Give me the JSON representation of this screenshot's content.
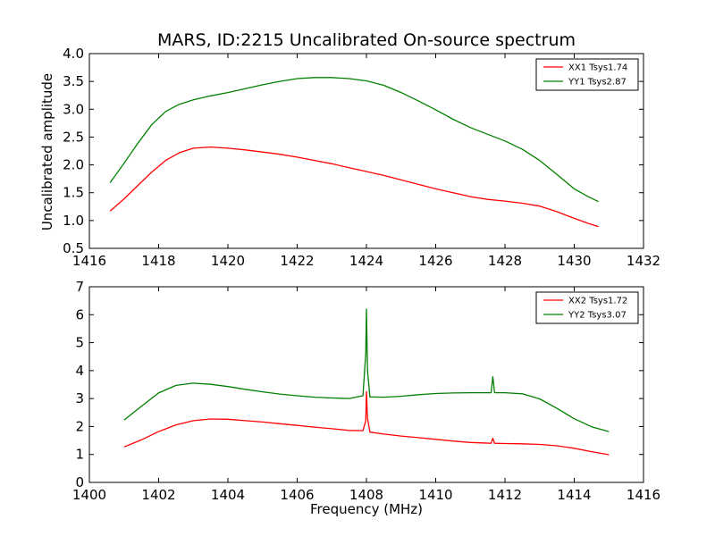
{
  "chart_data": [
    {
      "type": "line",
      "title": "MARS, ID:2215 Uncalibrated On-source spectrum",
      "xlabel": "",
      "ylabel": "Uncalibrated amplitude",
      "xlim": [
        1416,
        1432
      ],
      "ylim": [
        0.5,
        4.0
      ],
      "xticks": [
        "1416",
        "1418",
        "1420",
        "1422",
        "1424",
        "1426",
        "1428",
        "1430",
        "1432"
      ],
      "yticks": [
        "0.5",
        "1.0",
        "1.5",
        "2.0",
        "2.5",
        "3.0",
        "3.5",
        "4.0"
      ],
      "grid": false,
      "legend": "top-right",
      "series": [
        {
          "name": "XX1 Tsys1.74",
          "color": "#ff0000",
          "x": [
            1416.6,
            1417.0,
            1417.4,
            1417.8,
            1418.2,
            1418.6,
            1419.0,
            1419.5,
            1420.0,
            1420.5,
            1421.0,
            1421.5,
            1422.0,
            1422.5,
            1423.0,
            1423.5,
            1424.0,
            1424.5,
            1425.0,
            1425.5,
            1426.0,
            1426.5,
            1427.0,
            1427.5,
            1428.0,
            1428.5,
            1429.0,
            1429.5,
            1430.0,
            1430.4,
            1430.7
          ],
          "y": [
            1.17,
            1.39,
            1.63,
            1.87,
            2.08,
            2.22,
            2.3,
            2.32,
            2.3,
            2.27,
            2.23,
            2.19,
            2.14,
            2.08,
            2.02,
            1.95,
            1.88,
            1.81,
            1.73,
            1.65,
            1.57,
            1.5,
            1.43,
            1.38,
            1.35,
            1.31,
            1.26,
            1.16,
            1.04,
            0.95,
            0.89
          ]
        },
        {
          "name": "YY1 Tsys2.87",
          "color": "#008000",
          "x": [
            1416.6,
            1417.0,
            1417.4,
            1417.8,
            1418.2,
            1418.6,
            1419.0,
            1419.5,
            1420.0,
            1420.5,
            1421.0,
            1421.5,
            1422.0,
            1422.5,
            1423.0,
            1423.5,
            1424.0,
            1424.5,
            1425.0,
            1425.5,
            1426.0,
            1426.5,
            1427.0,
            1427.5,
            1428.0,
            1428.5,
            1429.0,
            1429.5,
            1430.0,
            1430.4,
            1430.7
          ],
          "y": [
            1.68,
            2.03,
            2.39,
            2.72,
            2.96,
            3.09,
            3.17,
            3.24,
            3.3,
            3.37,
            3.44,
            3.5,
            3.55,
            3.57,
            3.57,
            3.55,
            3.51,
            3.43,
            3.3,
            3.15,
            2.99,
            2.82,
            2.67,
            2.55,
            2.43,
            2.28,
            2.08,
            1.83,
            1.57,
            1.43,
            1.34
          ]
        }
      ]
    },
    {
      "type": "line",
      "title": "",
      "xlabel": "Frequency (MHz)",
      "ylabel": "",
      "xlim": [
        1400,
        1416
      ],
      "ylim": [
        0,
        7
      ],
      "xticks": [
        "1400",
        "1402",
        "1404",
        "1406",
        "1408",
        "1410",
        "1412",
        "1414",
        "1416"
      ],
      "yticks": [
        "0",
        "1",
        "2",
        "3",
        "4",
        "5",
        "6",
        "7"
      ],
      "grid": false,
      "legend": "top-right",
      "series": [
        {
          "name": "XX2 Tsys1.72",
          "color": "#ff0000",
          "x": [
            1401.0,
            1401.5,
            1402.0,
            1402.5,
            1403.0,
            1403.5,
            1404.0,
            1404.5,
            1405.0,
            1405.5,
            1406.0,
            1406.5,
            1407.0,
            1407.5,
            1407.9,
            1407.98,
            1408.0,
            1408.03,
            1408.1,
            1408.5,
            1409.0,
            1409.5,
            1410.0,
            1410.5,
            1411.0,
            1411.6,
            1411.65,
            1411.7,
            1412.0,
            1412.5,
            1413.0,
            1413.5,
            1414.0,
            1414.5,
            1415.0
          ],
          "y": [
            1.27,
            1.52,
            1.82,
            2.06,
            2.21,
            2.27,
            2.26,
            2.21,
            2.16,
            2.1,
            2.04,
            1.98,
            1.92,
            1.86,
            1.85,
            2.2,
            3.25,
            2.3,
            1.8,
            1.73,
            1.66,
            1.6,
            1.54,
            1.48,
            1.43,
            1.4,
            1.58,
            1.4,
            1.39,
            1.38,
            1.36,
            1.31,
            1.22,
            1.1,
            0.99
          ]
        },
        {
          "name": "YY2 Tsys3.07",
          "color": "#008000",
          "x": [
            1401.0,
            1401.5,
            1402.0,
            1402.5,
            1403.0,
            1403.5,
            1404.0,
            1404.5,
            1405.0,
            1405.5,
            1406.0,
            1406.5,
            1407.0,
            1407.5,
            1407.9,
            1407.98,
            1408.0,
            1408.03,
            1408.1,
            1408.5,
            1409.0,
            1409.5,
            1410.0,
            1410.5,
            1411.0,
            1411.6,
            1411.65,
            1411.7,
            1412.0,
            1412.5,
            1413.0,
            1413.5,
            1414.0,
            1414.5,
            1415.0
          ],
          "y": [
            2.23,
            2.72,
            3.2,
            3.47,
            3.55,
            3.51,
            3.43,
            3.33,
            3.24,
            3.16,
            3.1,
            3.05,
            3.02,
            3.0,
            3.1,
            4.6,
            6.2,
            4.0,
            3.06,
            3.05,
            3.08,
            3.14,
            3.18,
            3.2,
            3.21,
            3.21,
            3.78,
            3.21,
            3.21,
            3.17,
            2.99,
            2.65,
            2.28,
            1.99,
            1.82
          ]
        }
      ]
    }
  ]
}
